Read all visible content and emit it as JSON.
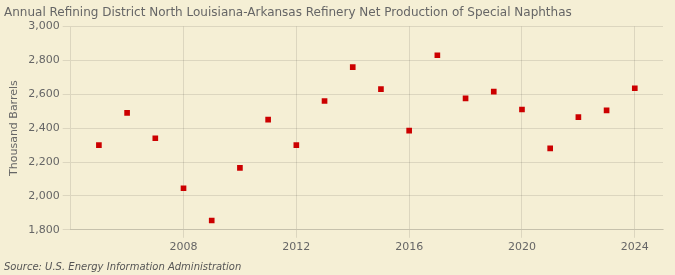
{
  "chart_data": {
    "type": "scatter",
    "title": "Annual Refining District North Louisiana-Arkansas Refinery Net Production of Special Naphthas",
    "ylabel": "Thousand Barrels",
    "annotations": [
      "Source: U.S. Energy Information Administration"
    ],
    "x": [
      2005,
      2006,
      2007,
      2008,
      2009,
      2010,
      2011,
      2012,
      2013,
      2014,
      2015,
      2016,
      2017,
      2018,
      2019,
      2020,
      2021,
      2022,
      2023,
      2024
    ],
    "values": [
      2300,
      2490,
      2340,
      2045,
      1855,
      2165,
      2450,
      2300,
      2560,
      2760,
      2630,
      2385,
      2830,
      2575,
      2615,
      2510,
      2280,
      2465,
      2505,
      2635
    ],
    "color": "#cc0000",
    "marker": "square",
    "xlim": [
      2004,
      2025
    ],
    "xticks": [
      2008,
      2012,
      2016,
      2020,
      2024
    ],
    "ylim": [
      1800,
      3000
    ],
    "yticks": [
      {
        "value": 1800,
        "label": "1,800"
      },
      {
        "value": 2000,
        "label": "2,000"
      },
      {
        "value": 2200,
        "label": "2,200"
      },
      {
        "value": 2400,
        "label": "2,400"
      },
      {
        "value": 2600,
        "label": "2,600"
      },
      {
        "value": 2800,
        "label": "2,800"
      },
      {
        "value": 3000,
        "label": "3,000"
      }
    ],
    "grid": true
  }
}
